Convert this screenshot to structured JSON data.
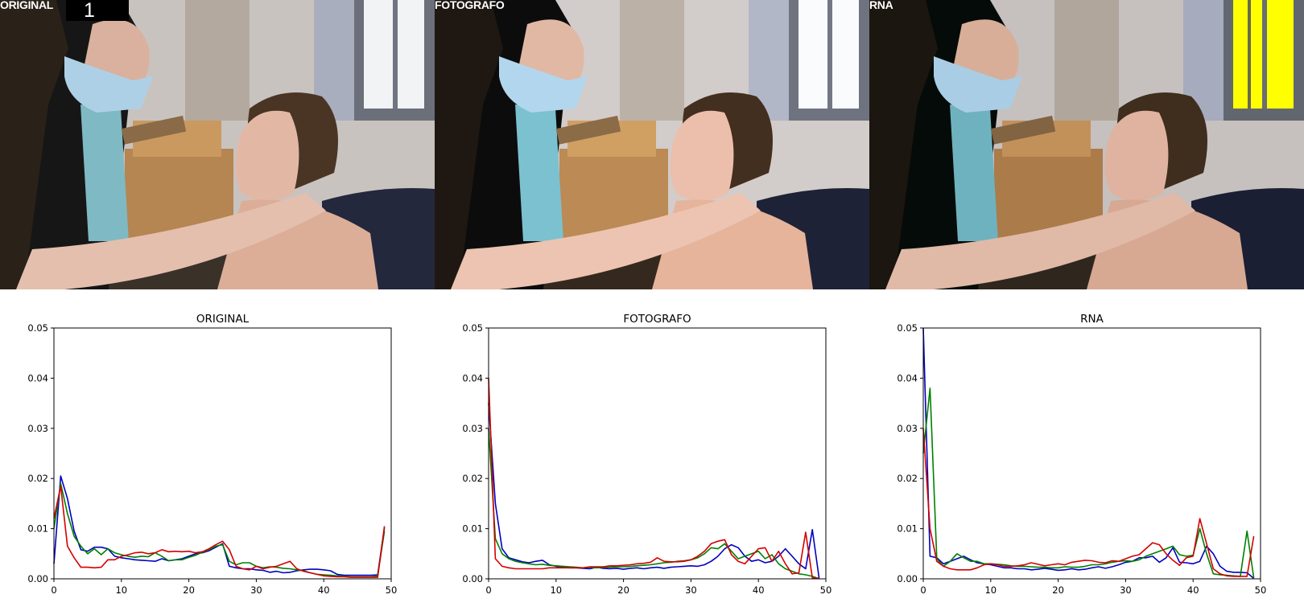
{
  "photos": [
    {
      "label": "ORIGINAL",
      "index": "1"
    },
    {
      "label": "FOTOGRAFO"
    },
    {
      "label": "RNA"
    }
  ],
  "colors": {
    "blue": "#0000bf",
    "green": "#008000",
    "red": "#d40000",
    "highlight": "#ffff00"
  },
  "chart_data": [
    {
      "type": "line",
      "title": "ORIGINAL",
      "xlim": [
        0,
        50
      ],
      "ylim": [
        0,
        0.05
      ],
      "xticks": [
        0,
        10,
        20,
        30,
        40,
        50
      ],
      "yticks": [
        0.0,
        0.01,
        0.02,
        0.03,
        0.04,
        0.05
      ],
      "ytick_labels": [
        "0.00",
        "0.01",
        "0.02",
        "0.03",
        "0.04",
        "0.05"
      ],
      "grid": false,
      "x": [
        0,
        1,
        2,
        3,
        4,
        5,
        6,
        7,
        8,
        9,
        10,
        11,
        12,
        13,
        14,
        15,
        16,
        17,
        18,
        19,
        20,
        21,
        22,
        23,
        24,
        25,
        26,
        27,
        28,
        29,
        30,
        31,
        32,
        33,
        34,
        35,
        36,
        37,
        38,
        39,
        40,
        41,
        42,
        43,
        44,
        45,
        46,
        47,
        48,
        49
      ],
      "series": [
        {
          "color": "blue",
          "values": [
            0.003,
            0.0205,
            0.016,
            0.0095,
            0.0058,
            0.0055,
            0.0063,
            0.0063,
            0.006,
            0.0045,
            0.0042,
            0.004,
            0.0038,
            0.0037,
            0.0036,
            0.0035,
            0.004,
            0.0036,
            0.0038,
            0.004,
            0.0045,
            0.005,
            0.0052,
            0.0056,
            0.0063,
            0.007,
            0.0025,
            0.0022,
            0.002,
            0.002,
            0.0018,
            0.0017,
            0.0013,
            0.0015,
            0.0012,
            0.0013,
            0.0016,
            0.0018,
            0.0019,
            0.0019,
            0.0018,
            0.0016,
            0.0009,
            0.0007,
            0.0007,
            0.0007,
            0.0007,
            0.0007,
            0.0008,
            0.0102
          ]
        },
        {
          "color": "green",
          "values": [
            0.01,
            0.019,
            0.013,
            0.0085,
            0.0065,
            0.005,
            0.006,
            0.0048,
            0.006,
            0.0052,
            0.0048,
            0.0045,
            0.0043,
            0.0045,
            0.0044,
            0.0052,
            0.0045,
            0.0036,
            0.0038,
            0.0038,
            0.0043,
            0.0047,
            0.0053,
            0.0058,
            0.0065,
            0.0068,
            0.0035,
            0.0028,
            0.0032,
            0.0032,
            0.0025,
            0.0022,
            0.0024,
            0.0023,
            0.0021,
            0.002,
            0.0018,
            0.0016,
            0.0012,
            0.0009,
            0.0008,
            0.0007,
            0.0006,
            0.0005,
            0.0004,
            0.0004,
            0.0004,
            0.0004,
            0.0006,
            0.0095
          ]
        },
        {
          "color": "red",
          "values": [
            0.012,
            0.0185,
            0.0065,
            0.0042,
            0.0023,
            0.0023,
            0.0022,
            0.0023,
            0.0038,
            0.0038,
            0.0045,
            0.0048,
            0.0052,
            0.0053,
            0.005,
            0.0052,
            0.0058,
            0.0054,
            0.0055,
            0.0054,
            0.0055,
            0.0052,
            0.0054,
            0.006,
            0.0068,
            0.0075,
            0.0058,
            0.0025,
            0.002,
            0.0018,
            0.0025,
            0.002,
            0.0023,
            0.0025,
            0.003,
            0.0035,
            0.002,
            0.0015,
            0.0012,
            0.0009,
            0.0006,
            0.0005,
            0.0004,
            0.0004,
            0.0003,
            0.0003,
            0.0003,
            0.0003,
            0.0003,
            0.0105
          ]
        }
      ]
    },
    {
      "type": "line",
      "title": "FOTOGRAFO",
      "xlim": [
        0,
        50
      ],
      "ylim": [
        0,
        0.05
      ],
      "xticks": [
        0,
        10,
        20,
        30,
        40,
        50
      ],
      "yticks": [
        0.0,
        0.01,
        0.02,
        0.03,
        0.04,
        0.05
      ],
      "ytick_labels": [
        "0.00",
        "0.01",
        "0.02",
        "0.03",
        "0.04",
        "0.05"
      ],
      "grid": false,
      "x": [
        0,
        1,
        2,
        3,
        4,
        5,
        6,
        7,
        8,
        9,
        10,
        11,
        12,
        13,
        14,
        15,
        16,
        17,
        18,
        19,
        20,
        21,
        22,
        23,
        24,
        25,
        26,
        27,
        28,
        29,
        30,
        31,
        32,
        33,
        34,
        35,
        36,
        37,
        38,
        39,
        40,
        41,
        42,
        43,
        44,
        45,
        46,
        47,
        48,
        49
      ],
      "series": [
        {
          "color": "blue",
          "values": [
            0.035,
            0.015,
            0.006,
            0.0042,
            0.0038,
            0.0034,
            0.0032,
            0.0035,
            0.0037,
            0.0028,
            0.0025,
            0.0023,
            0.0022,
            0.0022,
            0.0021,
            0.002,
            0.0023,
            0.0021,
            0.002,
            0.0021,
            0.0019,
            0.0021,
            0.0022,
            0.002,
            0.0022,
            0.0023,
            0.0021,
            0.0023,
            0.0024,
            0.0025,
            0.0026,
            0.0025,
            0.0028,
            0.0035,
            0.0045,
            0.006,
            0.0068,
            0.0062,
            0.0045,
            0.0035,
            0.0038,
            0.0032,
            0.0035,
            0.0045,
            0.006,
            0.0045,
            0.003,
            0.002,
            0.0098,
            0.0001
          ]
        },
        {
          "color": "green",
          "values": [
            0.03,
            0.008,
            0.005,
            0.004,
            0.0035,
            0.0032,
            0.003,
            0.0028,
            0.0029,
            0.0027,
            0.0026,
            0.0025,
            0.0024,
            0.0023,
            0.0022,
            0.0023,
            0.0022,
            0.0023,
            0.0023,
            0.0024,
            0.0024,
            0.0025,
            0.0026,
            0.0027,
            0.0028,
            0.003,
            0.0032,
            0.0033,
            0.0035,
            0.0036,
            0.0038,
            0.0042,
            0.005,
            0.0062,
            0.006,
            0.007,
            0.0055,
            0.004,
            0.0045,
            0.005,
            0.0055,
            0.004,
            0.0048,
            0.003,
            0.002,
            0.0015,
            0.001,
            0.0008,
            0.0005,
            0.0
          ]
        },
        {
          "color": "red",
          "values": [
            0.04,
            0.004,
            0.0025,
            0.0022,
            0.002,
            0.002,
            0.002,
            0.002,
            0.002,
            0.0022,
            0.0022,
            0.0022,
            0.0022,
            0.0022,
            0.0022,
            0.0024,
            0.0024,
            0.0024,
            0.0026,
            0.0026,
            0.0027,
            0.0028,
            0.003,
            0.0031,
            0.0033,
            0.0042,
            0.0035,
            0.0034,
            0.0034,
            0.0035,
            0.0038,
            0.0045,
            0.0055,
            0.007,
            0.0075,
            0.0078,
            0.0048,
            0.0035,
            0.003,
            0.0045,
            0.006,
            0.0062,
            0.0035,
            0.0055,
            0.003,
            0.001,
            0.0012,
            0.0093,
            0.0002,
            0.0001
          ]
        }
      ]
    },
    {
      "type": "line",
      "title": "RNA",
      "xlim": [
        0,
        50
      ],
      "ylim": [
        0,
        0.05
      ],
      "xticks": [
        0,
        10,
        20,
        30,
        40,
        50
      ],
      "yticks": [
        0.0,
        0.01,
        0.02,
        0.03,
        0.04,
        0.05
      ],
      "ytick_labels": [
        "0.00",
        "0.01",
        "0.02",
        "0.03",
        "0.04",
        "0.05"
      ],
      "grid": false,
      "x": [
        0,
        1,
        2,
        3,
        4,
        5,
        6,
        7,
        8,
        9,
        10,
        11,
        12,
        13,
        14,
        15,
        16,
        17,
        18,
        19,
        20,
        21,
        22,
        23,
        24,
        25,
        26,
        27,
        28,
        29,
        30,
        31,
        32,
        33,
        34,
        35,
        36,
        37,
        38,
        39,
        40,
        41,
        42,
        43,
        44,
        45,
        46,
        47,
        48,
        49
      ],
      "series": [
        {
          "color": "blue",
          "values": [
            0.05,
            0.0045,
            0.0042,
            0.003,
            0.0035,
            0.004,
            0.0045,
            0.0038,
            0.0032,
            0.003,
            0.0028,
            0.0025,
            0.0022,
            0.0022,
            0.002,
            0.002,
            0.0018,
            0.0019,
            0.0021,
            0.0019,
            0.0017,
            0.0018,
            0.002,
            0.0018,
            0.0019,
            0.0022,
            0.0024,
            0.0021,
            0.0024,
            0.0028,
            0.0033,
            0.0035,
            0.0042,
            0.0042,
            0.0045,
            0.0033,
            0.0042,
            0.0062,
            0.0033,
            0.0032,
            0.003,
            0.0035,
            0.0065,
            0.005,
            0.0025,
            0.0015,
            0.0013,
            0.0013,
            0.0012,
            0.0001
          ]
        },
        {
          "color": "green",
          "values": [
            0.025,
            0.038,
            0.004,
            0.0025,
            0.0035,
            0.005,
            0.0042,
            0.0035,
            0.0035,
            0.003,
            0.003,
            0.0029,
            0.0028,
            0.0026,
            0.0025,
            0.0025,
            0.0024,
            0.0023,
            0.0023,
            0.0022,
            0.0022,
            0.0024,
            0.0023,
            0.0023,
            0.0025,
            0.0028,
            0.0028,
            0.003,
            0.0033,
            0.0035,
            0.0036,
            0.0035,
            0.0038,
            0.0045,
            0.005,
            0.0055,
            0.006,
            0.0065,
            0.0048,
            0.0045,
            0.0047,
            0.01,
            0.005,
            0.001,
            0.0008,
            0.0007,
            0.0006,
            0.0005,
            0.0095,
            0.0002
          ]
        },
        {
          "color": "red",
          "values": [
            0.03,
            0.01,
            0.0035,
            0.0025,
            0.002,
            0.0018,
            0.0018,
            0.0018,
            0.0022,
            0.0028,
            0.003,
            0.0028,
            0.0025,
            0.0025,
            0.0026,
            0.0028,
            0.0032,
            0.0029,
            0.0026,
            0.0028,
            0.003,
            0.0028,
            0.0033,
            0.0035,
            0.0037,
            0.0036,
            0.0033,
            0.0032,
            0.0036,
            0.0035,
            0.004,
            0.0045,
            0.0048,
            0.006,
            0.0072,
            0.0068,
            0.005,
            0.0037,
            0.0027,
            0.0042,
            0.0045,
            0.012,
            0.007,
            0.002,
            0.001,
            0.0006,
            0.0005,
            0.0005,
            0.0005,
            0.0085
          ]
        }
      ]
    }
  ]
}
